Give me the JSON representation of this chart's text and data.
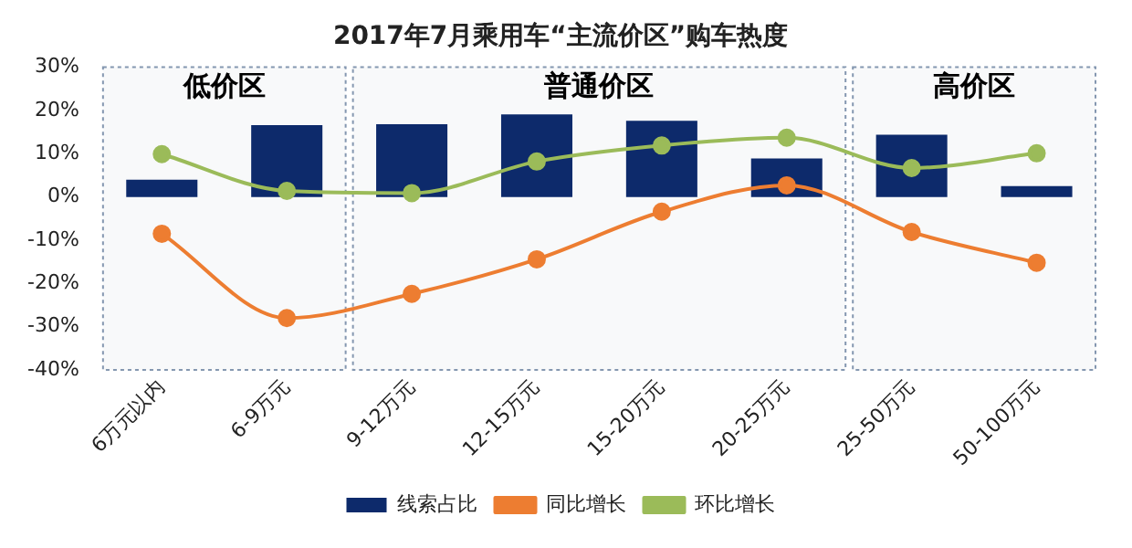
{
  "chart_data": {
    "type": "bar",
    "title": "2017年7月乘用车“主流价区”购车热度",
    "categories": [
      "6万元以内",
      "6-9万元",
      "9-12万元",
      "12-15万元",
      "15-20万元",
      "20-25万元",
      "25-50万元",
      "50-100万元"
    ],
    "series": [
      {
        "name": "线索占比",
        "color": "#0d2a6b",
        "values": [
          4,
          16.6,
          16.8,
          19.1,
          17.6,
          8.9,
          14.4,
          2.5
        ]
      },
      {
        "name": "同比增长",
        "type": "line",
        "color": "#ed7d31",
        "values": [
          -8.5,
          -28,
          -22.4,
          -14.4,
          -3.4,
          2.7,
          -8.1,
          -15.2
        ]
      },
      {
        "name": "环比增长",
        "type": "line",
        "color": "#9bbb59",
        "values": [
          9.9,
          1.4,
          0.9,
          8.2,
          11.9,
          13.7,
          6.7,
          10.1
        ]
      }
    ],
    "ylim": [
      -40,
      30
    ],
    "yticks": [
      {
        "value": -40,
        "label": "-40%"
      },
      {
        "value": -30,
        "label": "-30%"
      },
      {
        "value": -20,
        "label": "-20%"
      },
      {
        "value": -10,
        "label": "-10%"
      },
      {
        "value": 0,
        "label": "0%"
      },
      {
        "value": 10,
        "label": "10%"
      },
      {
        "value": 20,
        "label": "20%"
      },
      {
        "value": 30,
        "label": "30%"
      }
    ],
    "bands": [
      {
        "axis": "x",
        "from": "6万元以内",
        "to": "6-9万元",
        "label": "低价区",
        "color": "#8497b0"
      },
      {
        "axis": "x",
        "from": "9-12万元",
        "to": "20-25万元",
        "label": "普通价区",
        "color": "#8497b0"
      },
      {
        "axis": "x",
        "from": "25-50万元",
        "to": "50-100万元",
        "label": "高价区",
        "color": "#8497b0"
      }
    ],
    "marker": "circle",
    "grid": false,
    "legend": "bottom"
  }
}
